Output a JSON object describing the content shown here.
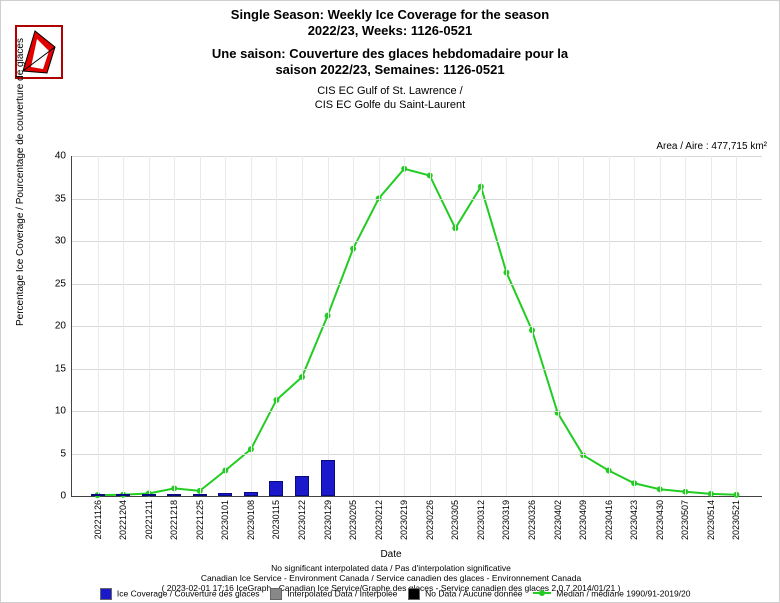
{
  "title_line1": "Single Season: Weekly Ice Coverage for the season",
  "title_line2": "2022/23, Weeks: 1126-0521",
  "title_line3": "Une saison: Couverture des glaces hebdomadaire pour la",
  "title_line4": "saison 2022/23, Semaines: 1126-0521",
  "subtitle_line1": "CIS EC Gulf of St. Lawrence /",
  "subtitle_line2": "CIS EC Golfe du Saint-Laurent",
  "area_label": "Area / Aire : 477,715 km²",
  "ylabel": "Percentage Ice Coverage / Pourcentage de couverture de glaces",
  "xlabel": "Date",
  "footnote1": "No significant interpolated data / Pas d'interpolation significative",
  "footnote2": "Canadian Ice Service - Environment Canada / Service canadien des glaces - Environnement Canada",
  "footnote3": "( 2023-02-01 17:16 IceGraph - Canadian Ice Service/Graphe des glaces - Service canadien des glaces 2.0.7 2014/01/21 )",
  "legend": {
    "bars": "Ice Coverage / Couverture des glaces",
    "interp": "Interpolated Data / Interpolée",
    "nodata": "No Data / Aucune donnée",
    "median": "Median / médiane 1990/91-2019/20"
  },
  "legend_colors": {
    "bars": "#1a1acc",
    "interp": "#888888",
    "nodata": "#000000",
    "median": "#22cc22"
  },
  "chart": {
    "type": "bar+line",
    "ylim": [
      0,
      40
    ],
    "ytick_step": 5,
    "bar_color": "#1a1acc",
    "bar_border": "#0a0a80",
    "median_color": "#22cc22",
    "median_marker": "circle",
    "median_marker_size": 3,
    "median_linewidth": 2,
    "grid_color": "#d8d8d8",
    "background_color": "#ffffff",
    "xtick_rotation": -90,
    "xtick_fontsize": 9,
    "axis_fontsize": 10,
    "categories": [
      "20221126",
      "20221204",
      "20221211",
      "20221218",
      "20221225",
      "20230101",
      "20230108",
      "20230115",
      "20230122",
      "20230129",
      "20230205",
      "20230212",
      "20230219",
      "20230226",
      "20230305",
      "20230312",
      "20230319",
      "20230326",
      "20230402",
      "20230409",
      "20230416",
      "20230423",
      "20230430",
      "20230507",
      "20230514",
      "20230521"
    ],
    "bar_values": [
      0.05,
      0.05,
      0.1,
      0.15,
      0.2,
      0.3,
      0.5,
      1.8,
      2.3,
      4.2,
      null,
      null,
      null,
      null,
      null,
      null,
      null,
      null,
      null,
      null,
      null,
      null,
      null,
      null,
      null,
      null
    ],
    "median_values": [
      0.1,
      0.15,
      0.3,
      0.9,
      0.6,
      3.0,
      5.5,
      11.3,
      14.0,
      21.2,
      29.1,
      35.0,
      38.5,
      37.7,
      31.5,
      36.4,
      26.3,
      19.5,
      9.8,
      4.8,
      3.0,
      1.5,
      0.8,
      0.5,
      0.25,
      0.15
    ]
  }
}
